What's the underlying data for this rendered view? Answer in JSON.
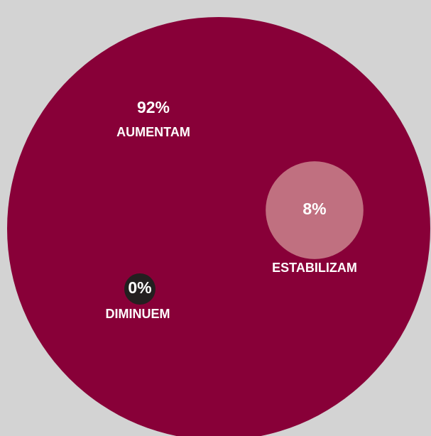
{
  "chart_data": {
    "type": "circles",
    "categories": [
      "AUMENTAM",
      "ESTABILIZAM",
      "DIMINUEM"
    ],
    "values": [
      92,
      8,
      0
    ],
    "value_labels": [
      "92%",
      "8%",
      "0%"
    ],
    "colors": [
      "#880038",
      "#c07080",
      "#231f20"
    ]
  }
}
